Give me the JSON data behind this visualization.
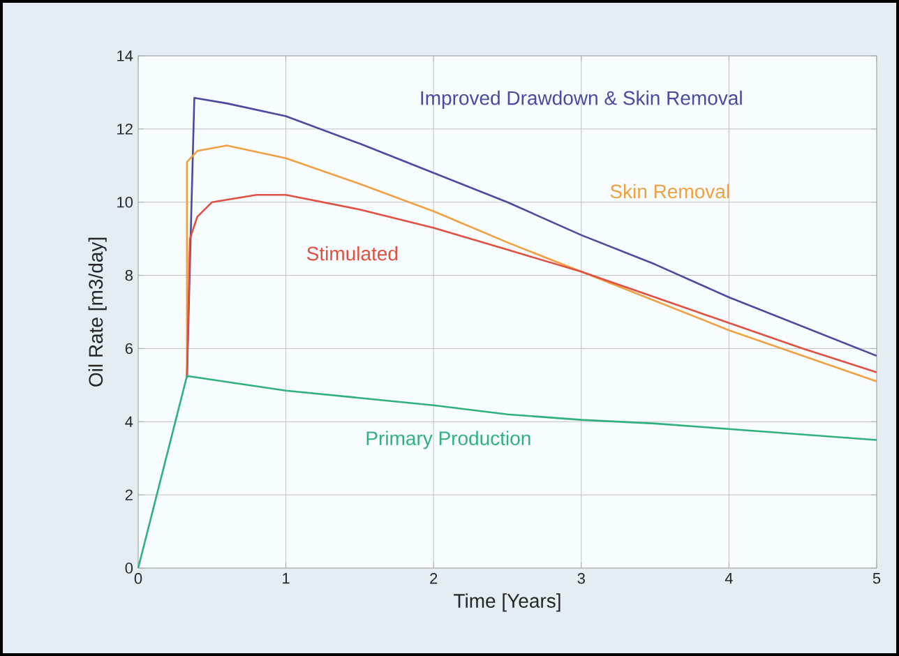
{
  "chart_data": {
    "type": "line",
    "xlabel": "Time [Years]",
    "ylabel": "Oil Rate [m3/day]",
    "xlim": [
      0,
      5
    ],
    "ylim": [
      0,
      14
    ],
    "xticks": [
      0,
      1,
      2,
      3,
      4,
      5
    ],
    "yticks": [
      0,
      2,
      4,
      6,
      8,
      10,
      12,
      14
    ],
    "grid": true,
    "legend": false,
    "marker": "none",
    "line_style": "solid",
    "series": [
      {
        "name": "Improved Drawdown & Skin Removal",
        "color": "#4a4aa0",
        "x": [
          0.33,
          0.38,
          0.6,
          1,
          1.5,
          2,
          2.5,
          3,
          3.5,
          4,
          4.5,
          5
        ],
        "values": [
          5.2,
          12.85,
          12.7,
          12.35,
          11.6,
          10.8,
          10.0,
          9.1,
          8.3,
          7.4,
          6.6,
          5.8
        ]
      },
      {
        "name": "Skin Removal",
        "color": "#f0a040",
        "x": [
          0.33,
          0.33,
          0.4,
          0.6,
          1,
          1.5,
          2,
          2.5,
          3,
          3.5,
          4,
          4.5,
          5
        ],
        "values": [
          5.2,
          11.1,
          11.4,
          11.55,
          11.2,
          10.5,
          9.75,
          8.9,
          8.1,
          7.3,
          6.5,
          5.8,
          5.1
        ]
      },
      {
        "name": "Stimulated",
        "color": "#e05040",
        "x": [
          0.33,
          0.35,
          0.4,
          0.5,
          0.8,
          1,
          1.5,
          2,
          2.5,
          3,
          3.5,
          4,
          4.5,
          5
        ],
        "values": [
          5.2,
          9.0,
          9.6,
          10.0,
          10.2,
          10.2,
          9.8,
          9.3,
          8.7,
          8.1,
          7.4,
          6.7,
          6.0,
          5.35
        ]
      },
      {
        "name": "Primary Production",
        "color": "#30b080",
        "x": [
          0,
          0.33,
          1,
          1.5,
          2,
          2.5,
          3,
          3.5,
          4,
          4.5,
          5
        ],
        "values": [
          0,
          5.25,
          4.85,
          4.65,
          4.45,
          4.2,
          4.05,
          3.95,
          3.8,
          3.65,
          3.5
        ]
      }
    ]
  }
}
